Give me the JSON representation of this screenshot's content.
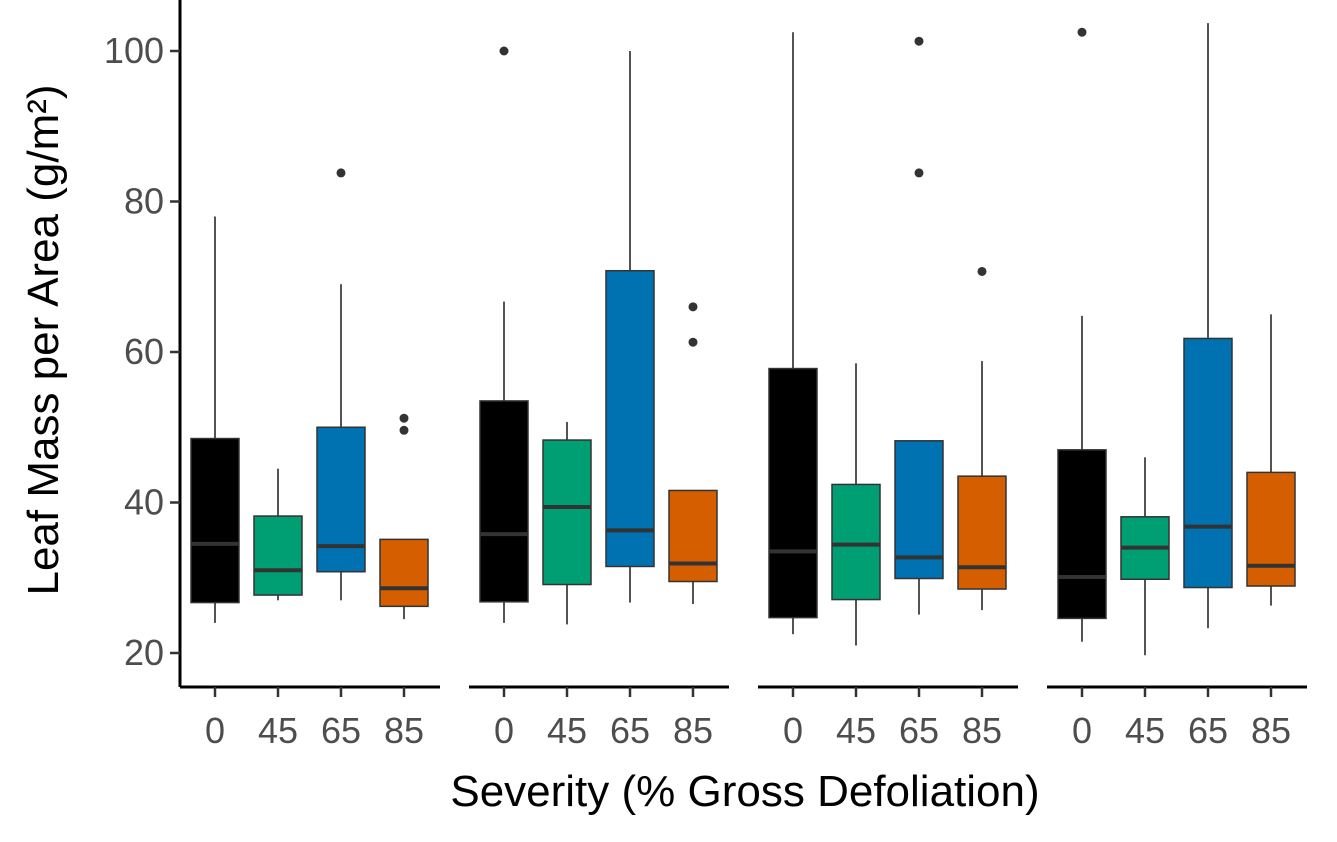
{
  "chart_data": {
    "type": "boxplot",
    "title": "",
    "xlabel": "Severity (% Gross Defoliation)",
    "ylabel": "Leaf Mass per Area (g/m²)",
    "ylim": [
      15,
      105
    ],
    "yticks": [
      20,
      40,
      60,
      80,
      100
    ],
    "categories": [
      "0",
      "45",
      "65",
      "85"
    ],
    "colors": {
      "0": "#000000",
      "45": "#009E73",
      "65": "#0072B2",
      "85": "#D55E00"
    },
    "panels": [
      {
        "boxes": [
          {
            "category": "0",
            "min": 24.0,
            "q1": 26.7,
            "median": 34.5,
            "q3": 48.5,
            "max": 78.0,
            "outliers": []
          },
          {
            "category": "45",
            "min": 27.0,
            "q1": 27.7,
            "median": 31.0,
            "q3": 38.2,
            "max": 44.5,
            "outliers": []
          },
          {
            "category": "65",
            "min": 27.0,
            "q1": 30.8,
            "median": 34.2,
            "q3": 50.0,
            "max": 69.0,
            "outliers": [
              83.8
            ]
          },
          {
            "category": "85",
            "min": 24.5,
            "q1": 26.2,
            "median": 28.6,
            "q3": 35.1,
            "max": 35.1,
            "outliers": [
              49.6,
              51.2
            ]
          }
        ]
      },
      {
        "boxes": [
          {
            "category": "0",
            "min": 24.0,
            "q1": 26.8,
            "median": 35.8,
            "q3": 53.5,
            "max": 66.7,
            "outliers": [
              100.0
            ]
          },
          {
            "category": "45",
            "min": 23.8,
            "q1": 29.1,
            "median": 39.4,
            "q3": 48.3,
            "max": 50.7,
            "outliers": []
          },
          {
            "category": "65",
            "min": 26.7,
            "q1": 31.5,
            "median": 36.3,
            "q3": 70.8,
            "max": 100.0,
            "outliers": []
          },
          {
            "category": "85",
            "min": 26.5,
            "q1": 29.5,
            "median": 31.9,
            "q3": 41.6,
            "max": 41.6,
            "outliers": [
              61.3,
              66.0
            ]
          }
        ]
      },
      {
        "boxes": [
          {
            "category": "0",
            "min": 22.5,
            "q1": 24.7,
            "median": 33.5,
            "q3": 57.8,
            "max": 102.5,
            "outliers": []
          },
          {
            "category": "45",
            "min": 21.0,
            "q1": 27.1,
            "median": 34.4,
            "q3": 42.4,
            "max": 58.5,
            "outliers": []
          },
          {
            "category": "65",
            "min": 25.1,
            "q1": 29.9,
            "median": 32.7,
            "q3": 48.2,
            "max": 48.2,
            "outliers": [
              83.8,
              101.3
            ]
          },
          {
            "category": "85",
            "min": 25.7,
            "q1": 28.5,
            "median": 31.4,
            "q3": 43.5,
            "max": 58.8,
            "outliers": [
              70.7
            ]
          }
        ]
      },
      {
        "boxes": [
          {
            "category": "0",
            "min": 21.5,
            "q1": 24.6,
            "median": 30.1,
            "q3": 47.0,
            "max": 64.8,
            "outliers": [
              102.5
            ]
          },
          {
            "category": "45",
            "min": 19.7,
            "q1": 29.8,
            "median": 34.0,
            "q3": 38.1,
            "max": 46.0,
            "outliers": []
          },
          {
            "category": "65",
            "min": 23.3,
            "q1": 28.7,
            "median": 36.8,
            "q3": 61.8,
            "max": 103.7,
            "outliers": []
          },
          {
            "category": "85",
            "min": 26.3,
            "q1": 28.9,
            "median": 31.6,
            "q3": 44.0,
            "max": 65.0,
            "outliers": []
          }
        ]
      }
    ]
  }
}
